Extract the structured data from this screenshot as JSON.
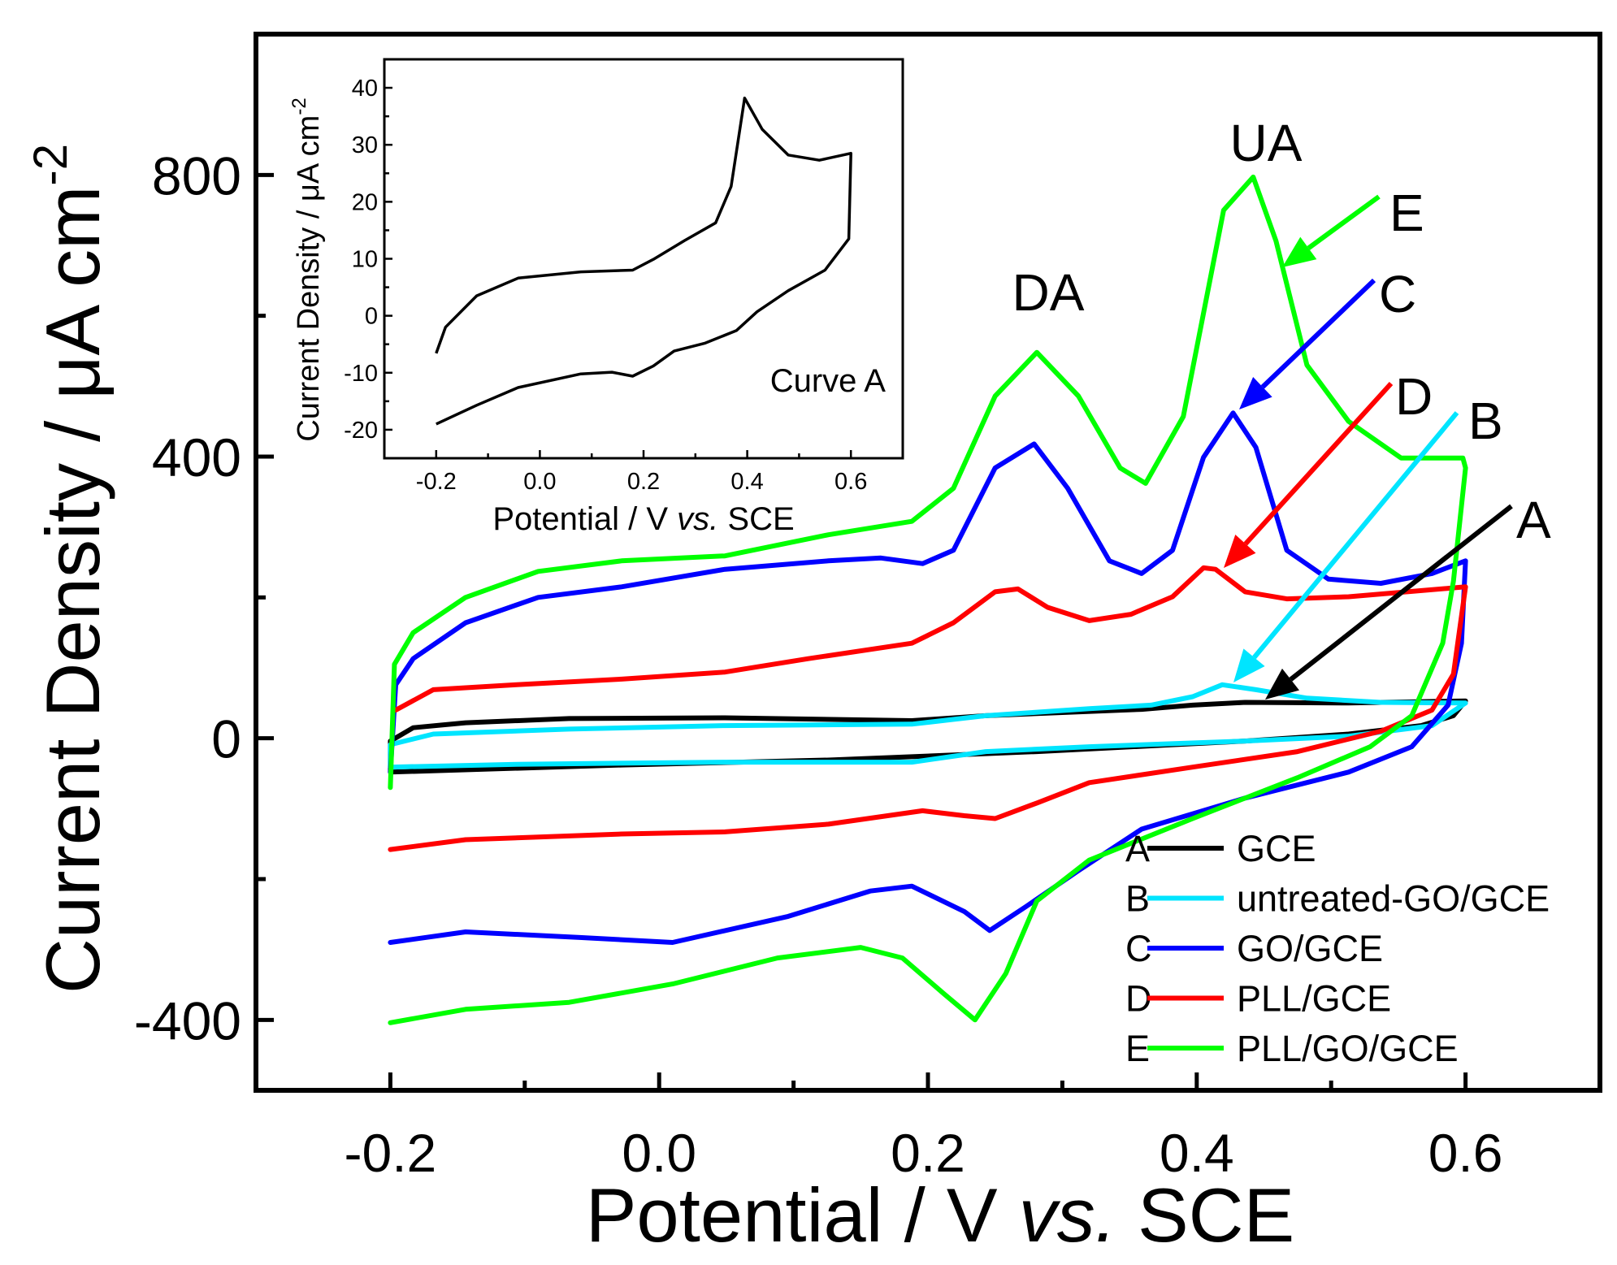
{
  "chart_data": {
    "type": "line",
    "xlabel": "Potential / V vs. SCE",
    "xlabel_parts": [
      "Potential / V ",
      "vs.",
      " SCE"
    ],
    "ylabel": "Current Density / μA cm-2",
    "ylabel_main": "Current Density / μA cm",
    "ylabel_sup": "-2",
    "xlim": [
      -0.3,
      0.7
    ],
    "ylim": [
      -500,
      1000
    ],
    "xticks": [
      -0.2,
      0.0,
      0.2,
      0.4,
      0.6
    ],
    "xtick_labels": [
      "-0.2",
      "0.0",
      "0.2",
      "0.4",
      "0.6"
    ],
    "yticks": [
      -400,
      0,
      400,
      800
    ],
    "ytick_labels": [
      "-400",
      "0",
      "400",
      "800"
    ],
    "grid": false,
    "legend_position": "bottom-right",
    "annotations": {
      "DA": "DA",
      "UA": "UA",
      "A": "A",
      "B": "B",
      "C": "C",
      "D": "D",
      "E": "E"
    },
    "series": [
      {
        "id": "A",
        "letter": "A",
        "name": "GCE",
        "color": "#000000",
        "forward": [
          [
            -0.2,
            -4
          ],
          [
            -0.183,
            15
          ],
          [
            -0.144,
            22
          ],
          [
            -0.067,
            28
          ],
          [
            0.049,
            29
          ],
          [
            0.188,
            25
          ],
          [
            0.243,
            32
          ],
          [
            0.281,
            35
          ],
          [
            0.359,
            41
          ],
          [
            0.397,
            47
          ],
          [
            0.436,
            51
          ],
          [
            0.513,
            50
          ],
          [
            0.6,
            53
          ]
        ],
        "reverse": [
          [
            0.6,
            53
          ],
          [
            0.591,
            32
          ],
          [
            0.567,
            18
          ],
          [
            0.513,
            6
          ],
          [
            0.436,
            -4
          ],
          [
            0.281,
            -19
          ],
          [
            0.126,
            -31
          ],
          [
            -0.028,
            -38
          ],
          [
            -0.2,
            -48
          ],
          [
            -0.2,
            -4
          ]
        ]
      },
      {
        "id": "B",
        "letter": "B",
        "name": "untreated-GO/GCE",
        "color": "#00e5ff",
        "forward": [
          [
            -0.2,
            -9
          ],
          [
            -0.168,
            6
          ],
          [
            -0.067,
            13
          ],
          [
            0.049,
            18
          ],
          [
            0.188,
            20
          ],
          [
            0.243,
            32
          ],
          [
            0.32,
            42
          ],
          [
            0.366,
            47
          ],
          [
            0.397,
            59
          ],
          [
            0.419,
            76
          ],
          [
            0.444,
            69
          ],
          [
            0.482,
            57
          ],
          [
            0.537,
            51
          ],
          [
            0.6,
            50
          ]
        ],
        "reverse": [
          [
            0.6,
            50
          ],
          [
            0.575,
            18
          ],
          [
            0.513,
            3
          ],
          [
            0.436,
            -4
          ],
          [
            0.32,
            -12
          ],
          [
            0.243,
            -19
          ],
          [
            0.188,
            -34
          ],
          [
            0.049,
            -34
          ],
          [
            -0.106,
            -37
          ],
          [
            -0.2,
            -41
          ],
          [
            -0.2,
            -9
          ]
        ]
      },
      {
        "id": "C",
        "letter": "C",
        "name": "GO/GCE",
        "color": "#0000ff",
        "forward": [
          [
            -0.2,
            -48
          ],
          [
            -0.196,
            76
          ],
          [
            -0.183,
            113
          ],
          [
            -0.144,
            164
          ],
          [
            -0.09,
            200
          ],
          [
            -0.028,
            215
          ],
          [
            0.049,
            240
          ],
          [
            0.126,
            252
          ],
          [
            0.165,
            256
          ],
          [
            0.196,
            248
          ],
          [
            0.219,
            267
          ],
          [
            0.25,
            384
          ],
          [
            0.279,
            418
          ],
          [
            0.304,
            355
          ],
          [
            0.335,
            252
          ],
          [
            0.359,
            234
          ],
          [
            0.382,
            267
          ],
          [
            0.405,
            399
          ],
          [
            0.427,
            462
          ],
          [
            0.444,
            413
          ],
          [
            0.467,
            267
          ],
          [
            0.498,
            226
          ],
          [
            0.537,
            220
          ],
          [
            0.575,
            234
          ],
          [
            0.6,
            252
          ]
        ],
        "reverse": [
          [
            0.6,
            252
          ],
          [
            0.597,
            135
          ],
          [
            0.587,
            47
          ],
          [
            0.56,
            -12
          ],
          [
            0.513,
            -48
          ],
          [
            0.436,
            -85
          ],
          [
            0.359,
            -129
          ],
          [
            0.312,
            -188
          ],
          [
            0.273,
            -239
          ],
          [
            0.246,
            -273
          ],
          [
            0.227,
            -246
          ],
          [
            0.188,
            -210
          ],
          [
            0.157,
            -217
          ],
          [
            0.096,
            -253
          ],
          [
            0.01,
            -290
          ],
          [
            -0.059,
            -283
          ],
          [
            -0.144,
            -275
          ],
          [
            -0.2,
            -290
          ]
        ]
      },
      {
        "id": "D",
        "letter": "D",
        "name": "PLL/GCE",
        "color": "#ff0000",
        "forward": [
          [
            -0.196,
            40
          ],
          [
            -0.168,
            69
          ],
          [
            -0.106,
            76
          ],
          [
            -0.028,
            84
          ],
          [
            0.049,
            94
          ],
          [
            0.111,
            113
          ],
          [
            0.188,
            135
          ],
          [
            0.219,
            164
          ],
          [
            0.25,
            208
          ],
          [
            0.267,
            212
          ],
          [
            0.289,
            186
          ],
          [
            0.32,
            167
          ],
          [
            0.351,
            176
          ],
          [
            0.382,
            201
          ],
          [
            0.405,
            242
          ],
          [
            0.414,
            240
          ],
          [
            0.436,
            208
          ],
          [
            0.467,
            198
          ],
          [
            0.513,
            201
          ],
          [
            0.6,
            215
          ]
        ],
        "reverse": [
          [
            0.6,
            215
          ],
          [
            0.591,
            91
          ],
          [
            0.575,
            40
          ],
          [
            0.537,
            10
          ],
          [
            0.475,
            -19
          ],
          [
            0.397,
            -41
          ],
          [
            0.32,
            -63
          ],
          [
            0.281,
            -92
          ],
          [
            0.25,
            -114
          ],
          [
            0.227,
            -110
          ],
          [
            0.196,
            -103
          ],
          [
            0.126,
            -122
          ],
          [
            0.049,
            -133
          ],
          [
            -0.028,
            -136
          ],
          [
            -0.144,
            -144
          ],
          [
            -0.2,
            -158
          ]
        ]
      },
      {
        "id": "E",
        "letter": "E",
        "name": "PLL/GO/GCE",
        "color": "#00ff00",
        "forward": [
          [
            -0.2,
            -70
          ],
          [
            -0.197,
            105
          ],
          [
            -0.183,
            150
          ],
          [
            -0.144,
            200
          ],
          [
            -0.09,
            237
          ],
          [
            -0.028,
            252
          ],
          [
            0.049,
            259
          ],
          [
            0.126,
            289
          ],
          [
            0.188,
            308
          ],
          [
            0.219,
            355
          ],
          [
            0.25,
            486
          ],
          [
            0.281,
            548
          ],
          [
            0.312,
            486
          ],
          [
            0.343,
            384
          ],
          [
            0.362,
            362
          ],
          [
            0.39,
            457
          ],
          [
            0.42,
            750
          ],
          [
            0.442,
            797
          ],
          [
            0.459,
            706
          ],
          [
            0.482,
            530
          ],
          [
            0.513,
            450
          ],
          [
            0.552,
            398
          ],
          [
            0.598,
            398
          ],
          [
            0.6,
            384
          ]
        ],
        "reverse": [
          [
            0.6,
            384
          ],
          [
            0.591,
            223
          ],
          [
            0.583,
            135
          ],
          [
            0.56,
            32
          ],
          [
            0.529,
            -12
          ],
          [
            0.475,
            -56
          ],
          [
            0.397,
            -114
          ],
          [
            0.32,
            -173
          ],
          [
            0.281,
            -231
          ],
          [
            0.258,
            -334
          ],
          [
            0.235,
            -400
          ],
          [
            0.212,
            -363
          ],
          [
            0.181,
            -312
          ],
          [
            0.15,
            -297
          ],
          [
            0.088,
            -312
          ],
          [
            0.01,
            -349
          ],
          [
            -0.067,
            -375
          ],
          [
            -0.144,
            -385
          ],
          [
            -0.2,
            -404
          ]
        ]
      }
    ],
    "inset": {
      "type": "line",
      "xlabel_parts": [
        "Potential / V ",
        "vs.",
        " SCE"
      ],
      "ylabel_main": "Current Density / μA cm",
      "ylabel_sup": "-2",
      "xlim": [
        -0.3,
        0.7
      ],
      "ylim": [
        -25,
        45
      ],
      "xticks": [
        -0.2,
        0.0,
        0.2,
        0.4,
        0.6
      ],
      "xtick_labels": [
        "-0.2",
        "0.0",
        "0.2",
        "0.4",
        "0.6"
      ],
      "yticks": [
        -20,
        -10,
        0,
        10,
        20,
        30,
        40
      ],
      "ytick_labels": [
        "-20",
        "-10",
        "0",
        "10",
        "20",
        "30",
        "40"
      ],
      "annotation": "Curve A",
      "color": "#000000",
      "points": [
        [
          -0.2,
          -6.6
        ],
        [
          -0.182,
          -2
        ],
        [
          -0.122,
          3.5
        ],
        [
          -0.042,
          6.6
        ],
        [
          0.079,
          7.7
        ],
        [
          0.179,
          8
        ],
        [
          0.219,
          9.9
        ],
        [
          0.279,
          13.2
        ],
        [
          0.339,
          16.3
        ],
        [
          0.369,
          22.7
        ],
        [
          0.395,
          38.2
        ],
        [
          0.429,
          32.7
        ],
        [
          0.479,
          28.2
        ],
        [
          0.539,
          27.3
        ],
        [
          0.6,
          28.5
        ],
        [
          0.596,
          13.5
        ],
        [
          0.55,
          8
        ],
        [
          0.479,
          4.4
        ],
        [
          0.419,
          0.7
        ],
        [
          0.379,
          -2.6
        ],
        [
          0.319,
          -4.8
        ],
        [
          0.259,
          -6.2
        ],
        [
          0.219,
          -8.8
        ],
        [
          0.179,
          -10.6
        ],
        [
          0.139,
          -9.9
        ],
        [
          0.079,
          -10.2
        ],
        [
          -0.042,
          -12.6
        ],
        [
          -0.122,
          -15.7
        ],
        [
          -0.2,
          -19
        ]
      ]
    }
  }
}
